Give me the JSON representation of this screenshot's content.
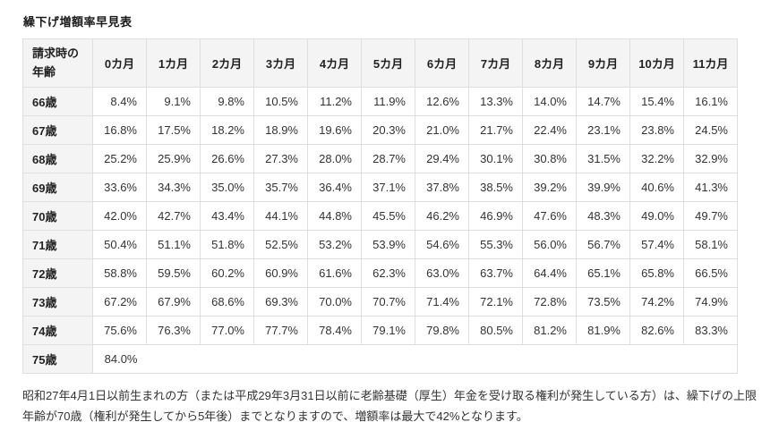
{
  "page": {
    "title": "繰下げ増額率早見表",
    "note": "昭和27年4月1日以前生まれの方（または平成29年3月31日以前に老齢基礎（厚生）年金を受け取る権利が発生している方）は、繰下げの上限年齢が70歳（権利が発生してから5年後）までとなりますので、増額率は最大で42%となります。"
  },
  "colors": {
    "header_bg": "#f4f4f4",
    "border": "#dfdfdf",
    "body_text": "#333333",
    "heading_text": "#222222"
  },
  "table": {
    "corner_header_lines": [
      "請求時の",
      "年齢"
    ],
    "month_headers": [
      "0カ月",
      "1カ月",
      "2カ月",
      "3カ月",
      "4カ月",
      "5カ月",
      "6カ月",
      "7カ月",
      "8カ月",
      "9カ月",
      "10カ月",
      "11カ月"
    ],
    "rows": [
      {
        "age": "66歳",
        "values": [
          "8.4%",
          "9.1%",
          "9.8%",
          "10.5%",
          "11.2%",
          "11.9%",
          "12.6%",
          "13.3%",
          "14.0%",
          "14.7%",
          "15.4%",
          "16.1%"
        ]
      },
      {
        "age": "67歳",
        "values": [
          "16.8%",
          "17.5%",
          "18.2%",
          "18.9%",
          "19.6%",
          "20.3%",
          "21.0%",
          "21.7%",
          "22.4%",
          "23.1%",
          "23.8%",
          "24.5%"
        ]
      },
      {
        "age": "68歳",
        "values": [
          "25.2%",
          "25.9%",
          "26.6%",
          "27.3%",
          "28.0%",
          "28.7%",
          "29.4%",
          "30.1%",
          "30.8%",
          "31.5%",
          "32.2%",
          "32.9%"
        ]
      },
      {
        "age": "69歳",
        "values": [
          "33.6%",
          "34.3%",
          "35.0%",
          "35.7%",
          "36.4%",
          "37.1%",
          "37.8%",
          "38.5%",
          "39.2%",
          "39.9%",
          "40.6%",
          "41.3%"
        ]
      },
      {
        "age": "70歳",
        "values": [
          "42.0%",
          "42.7%",
          "43.4%",
          "44.1%",
          "44.8%",
          "45.5%",
          "46.2%",
          "46.9%",
          "47.6%",
          "48.3%",
          "49.0%",
          "49.7%"
        ]
      },
      {
        "age": "71歳",
        "values": [
          "50.4%",
          "51.1%",
          "51.8%",
          "52.5%",
          "53.2%",
          "53.9%",
          "54.6%",
          "55.3%",
          "56.0%",
          "56.7%",
          "57.4%",
          "58.1%"
        ]
      },
      {
        "age": "72歳",
        "values": [
          "58.8%",
          "59.5%",
          "60.2%",
          "60.9%",
          "61.6%",
          "62.3%",
          "63.0%",
          "63.7%",
          "64.4%",
          "65.1%",
          "65.8%",
          "66.5%"
        ]
      },
      {
        "age": "73歳",
        "values": [
          "67.2%",
          "67.9%",
          "68.6%",
          "69.3%",
          "70.0%",
          "70.7%",
          "71.4%",
          "72.1%",
          "72.8%",
          "73.5%",
          "74.2%",
          "74.9%"
        ]
      },
      {
        "age": "74歳",
        "values": [
          "75.6%",
          "76.3%",
          "77.0%",
          "77.7%",
          "78.4%",
          "79.1%",
          "79.8%",
          "80.5%",
          "81.2%",
          "81.9%",
          "82.6%",
          "83.3%"
        ]
      },
      {
        "age": "75歳",
        "values": [
          "84.0%"
        ]
      }
    ]
  }
}
